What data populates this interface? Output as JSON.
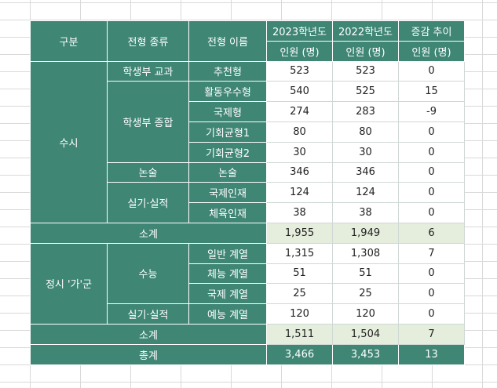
{
  "colors": {
    "header_green": "#3f8675",
    "subtotal_fill": "#e5eedc",
    "grid_line": "#d9d9d9"
  },
  "header": {
    "category": "구분",
    "type": "전형 종류",
    "name": "전형 이름",
    "year2023": "2023학년도",
    "year2022": "2022학년도",
    "change": "증감 추이",
    "unit": "인원 (명)"
  },
  "susi": {
    "label": "수시",
    "gyogwa": {
      "label": "학생부 교과",
      "name": "추천형",
      "y2023": "523",
      "y2022": "523",
      "diff": "0"
    },
    "jonghap": {
      "label": "학생부 종합",
      "rows": [
        {
          "name": "활동우수형",
          "y2023": "540",
          "y2022": "525",
          "diff": "15"
        },
        {
          "name": "국제형",
          "y2023": "274",
          "y2022": "283",
          "diff": "-9"
        },
        {
          "name": "기회균형1",
          "y2023": "80",
          "y2022": "80",
          "diff": "0"
        },
        {
          "name": "기회균형2",
          "y2023": "30",
          "y2022": "30",
          "diff": "0"
        }
      ]
    },
    "nonsul": {
      "label": "논술",
      "name": "논술",
      "y2023": "346",
      "y2022": "346",
      "diff": "0"
    },
    "silgi": {
      "label": "실기·실적",
      "rows": [
        {
          "name": "국제인재",
          "y2023": "124",
          "y2022": "124",
          "diff": "0"
        },
        {
          "name": "체육인재",
          "y2023": "38",
          "y2022": "38",
          "diff": "0"
        }
      ]
    },
    "subtotal": {
      "label": "소계",
      "y2023": "1,955",
      "y2022": "1,949",
      "diff": "6"
    }
  },
  "jeongsi": {
    "label": "정시 '가'군",
    "suneung": {
      "label": "수능",
      "rows": [
        {
          "name": "일반 계열",
          "y2023": "1,315",
          "y2022": "1,308",
          "diff": "7"
        },
        {
          "name": "체능 계열",
          "y2023": "51",
          "y2022": "51",
          "diff": "0"
        },
        {
          "name": "국제 계열",
          "y2023": "25",
          "y2022": "25",
          "diff": "0"
        }
      ]
    },
    "silgi": {
      "label": "실기·실적",
      "name": "예능 계열",
      "y2023": "120",
      "y2022": "120",
      "diff": "0"
    },
    "subtotal": {
      "label": "소계",
      "y2023": "1,511",
      "y2022": "1,504",
      "diff": "7"
    }
  },
  "total": {
    "label": "총계",
    "y2023": "3,466",
    "y2022": "3,453",
    "diff": "13"
  }
}
